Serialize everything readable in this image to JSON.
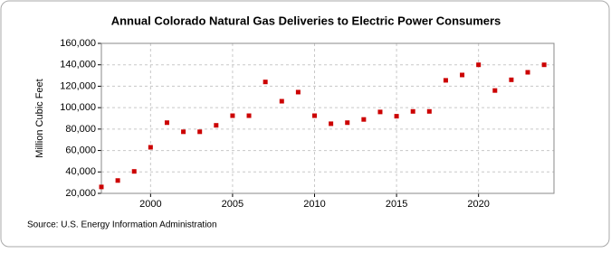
{
  "chart_data": {
    "type": "scatter",
    "title": "Annual Colorado Natural Gas Deliveries to Electric Power Consumers",
    "y_label": "Million Cubic Feet",
    "source": "Source: U.S. Energy Information Administration",
    "x": [
      1997,
      1998,
      1999,
      2000,
      2001,
      2002,
      2003,
      2004,
      2005,
      2006,
      2007,
      2008,
      2009,
      2010,
      2011,
      2012,
      2013,
      2014,
      2015,
      2016,
      2017,
      2018,
      2019,
      2020,
      2021,
      2022,
      2023,
      2024
    ],
    "series": [
      {
        "name": "Colorado",
        "color": "#cc0000",
        "values": [
          26000,
          32000,
          40500,
          63000,
          86000,
          77500,
          77500,
          83500,
          92500,
          92500,
          124000,
          106000,
          114500,
          92500,
          85000,
          86000,
          89000,
          96000,
          92000,
          96500,
          96500,
          125500,
          130500,
          140000,
          116000,
          126000,
          133000,
          140000
        ]
      }
    ],
    "xlim": [
      1997,
      2024.6
    ],
    "xticks": [
      2000,
      2005,
      2010,
      2015,
      2020
    ],
    "ylim": [
      20000,
      160000
    ],
    "yticks": [
      {
        "value": 20000,
        "label": "20,000"
      },
      {
        "value": 40000,
        "label": "40,000"
      },
      {
        "value": 60000,
        "label": "60,000"
      },
      {
        "value": 80000,
        "label": "80,000"
      },
      {
        "value": 100000,
        "label": "100,000"
      },
      {
        "value": 120000,
        "label": "120,000"
      },
      {
        "value": 140000,
        "label": "140,000"
      },
      {
        "value": 160000,
        "label": "160,000"
      }
    ],
    "grid": true
  }
}
